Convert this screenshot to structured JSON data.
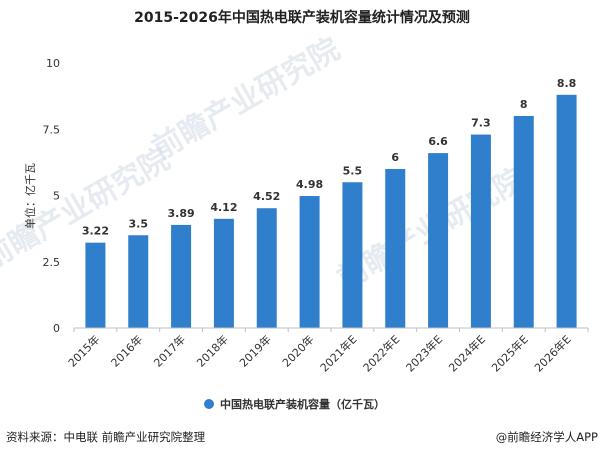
{
  "chart_data": {
    "type": "bar",
    "title": "2015-2026年中国热电联产装机容量统计情况及预测",
    "ylabel": "单位：亿千瓦",
    "xlabel": "",
    "categories": [
      "2015年",
      "2016年",
      "2017年",
      "2018年",
      "2019年",
      "2020年",
      "2021年E",
      "2022年E",
      "2023年E",
      "2024年E",
      "2025年E",
      "2026年E"
    ],
    "series": [
      {
        "name": "中国热电联产装机容量（亿千瓦）",
        "values": [
          3.22,
          3.5,
          3.89,
          4.12,
          4.52,
          4.98,
          5.5,
          6,
          6.6,
          7.3,
          8,
          8.8
        ],
        "labels": [
          "3.22",
          "3.5",
          "3.89",
          "4.12",
          "4.52",
          "4.98",
          "5.5",
          "6",
          "6.6",
          "7.3",
          "8",
          "8.8"
        ]
      }
    ],
    "ylim": [
      0,
      10
    ],
    "yticks": [
      0,
      2.5,
      5,
      7.5,
      10
    ],
    "ytick_labels": [
      "0",
      "2.5",
      "5",
      "7.5",
      "10"
    ],
    "grid": false,
    "legend_position": "bottom-center",
    "bar_color": "#2f7fcc"
  },
  "footer": {
    "source": "资料来源：中电联 前瞻产业研究院整理",
    "brand": "@前瞻经济学人APP"
  },
  "watermark": {
    "text": "前瞻产业研究院"
  }
}
